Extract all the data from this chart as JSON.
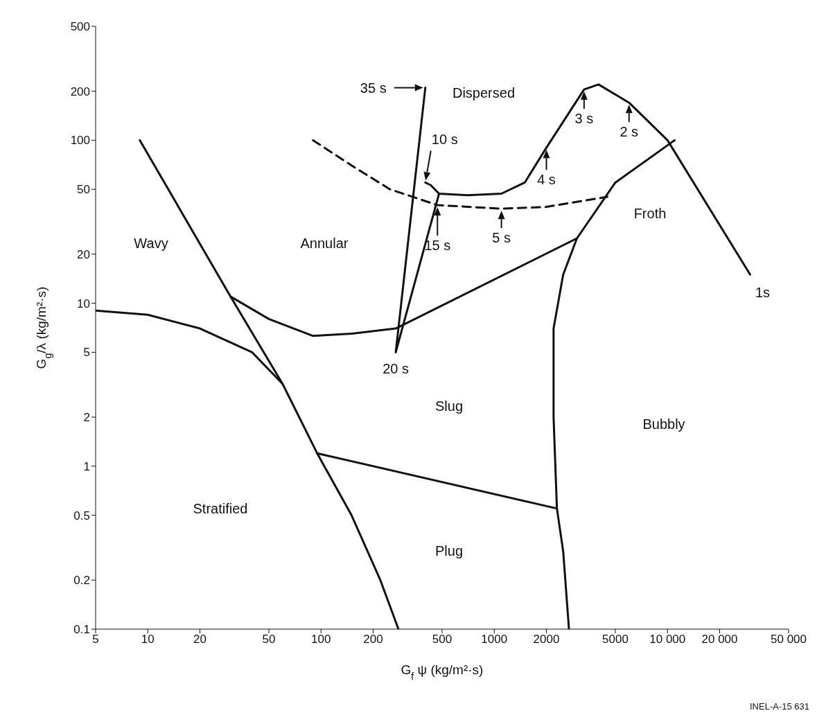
{
  "chart_data": {
    "type": "line",
    "xlabel": "G$_{f}$ ψ (kg/m²·s)",
    "ylabel": "G$_{g}$/λ (kg/m²·s)",
    "log": "xy",
    "grid": false,
    "legend": false,
    "marker": "none",
    "xlim": [
      5,
      50000
    ],
    "xticks": [
      5,
      10,
      20,
      50,
      100,
      200,
      500,
      1000,
      2000,
      5000,
      {
        "value": 10000,
        "label": "10 000"
      },
      {
        "value": 20000,
        "label": "20 000"
      },
      {
        "value": 50000,
        "label": "50 000"
      }
    ],
    "ylim": [
      0.1,
      500
    ],
    "yticks": [
      0.1,
      0.2,
      0.5,
      1,
      2,
      5,
      10,
      20,
      50,
      100,
      200,
      500
    ],
    "series": [
      {
        "color": "#111111",
        "x": [
          9,
          30,
          60,
          95,
          150,
          220,
          280
        ],
        "values": [
          100,
          11,
          3.2,
          1.2,
          0.5,
          0.2,
          0.1
        ]
      },
      {
        "color": "#111111",
        "x": [
          5,
          10,
          20,
          40,
          60
        ],
        "values": [
          9,
          8.5,
          7,
          5,
          3.2
        ]
      },
      {
        "color": "#111111",
        "x": [
          30,
          50,
          90,
          150,
          270,
          3000
        ],
        "values": [
          11,
          8,
          6.3,
          6.5,
          7,
          25
        ]
      },
      {
        "color": "#111111",
        "x": [
          95,
          2300
        ],
        "values": [
          1.2,
          0.55
        ]
      },
      {
        "color": "#111111",
        "x": [
          2700,
          2500,
          2300,
          2200,
          2200,
          2500,
          3000,
          5000,
          11000
        ],
        "values": [
          0.1,
          0.3,
          0.55,
          2,
          7,
          15,
          25,
          55,
          100
        ]
      },
      {
        "color": "#111111",
        "line_style": "dashed",
        "x": [
          90,
          150,
          250,
          470,
          1100,
          2000,
          4500
        ],
        "values": [
          100,
          70,
          50,
          40,
          38,
          39,
          45
        ]
      },
      {
        "color": "#111111",
        "x": [
          30000,
          10000,
          6000,
          4000,
          3300,
          2000,
          1500,
          1100,
          700,
          480,
          430,
          400
        ],
        "values": [
          15,
          100,
          170,
          220,
          205,
          90,
          55,
          47,
          46,
          47,
          53,
          55
        ]
      },
      {
        "color": "#111111",
        "x": [
          400,
          270,
          480
        ],
        "values": [
          210,
          5,
          47
        ]
      }
    ],
    "annotations": [
      {
        "text": "35 s",
        "x": 400,
        "y": 210
      },
      {
        "text": "10 s",
        "x": 400,
        "y": 55
      },
      {
        "text": "3 s",
        "x": 3300,
        "y": 205
      },
      {
        "text": "2 s",
        "x": 6000,
        "y": 170
      },
      {
        "text": "4 s",
        "x": 2000,
        "y": 90
      },
      {
        "text": "15 s",
        "x": 470,
        "y": 40
      },
      {
        "text": "5 s",
        "x": 1100,
        "y": 38
      },
      {
        "text": "20 s",
        "x": 270,
        "y": 5
      },
      {
        "text": "1s",
        "x": 30000,
        "y": 15
      },
      "Dispersed",
      "Froth",
      "Wavy",
      "Annular",
      "Slug",
      "Bubbly",
      "Stratified",
      "Plug",
      "INEL-A-15 631"
    ]
  }
}
